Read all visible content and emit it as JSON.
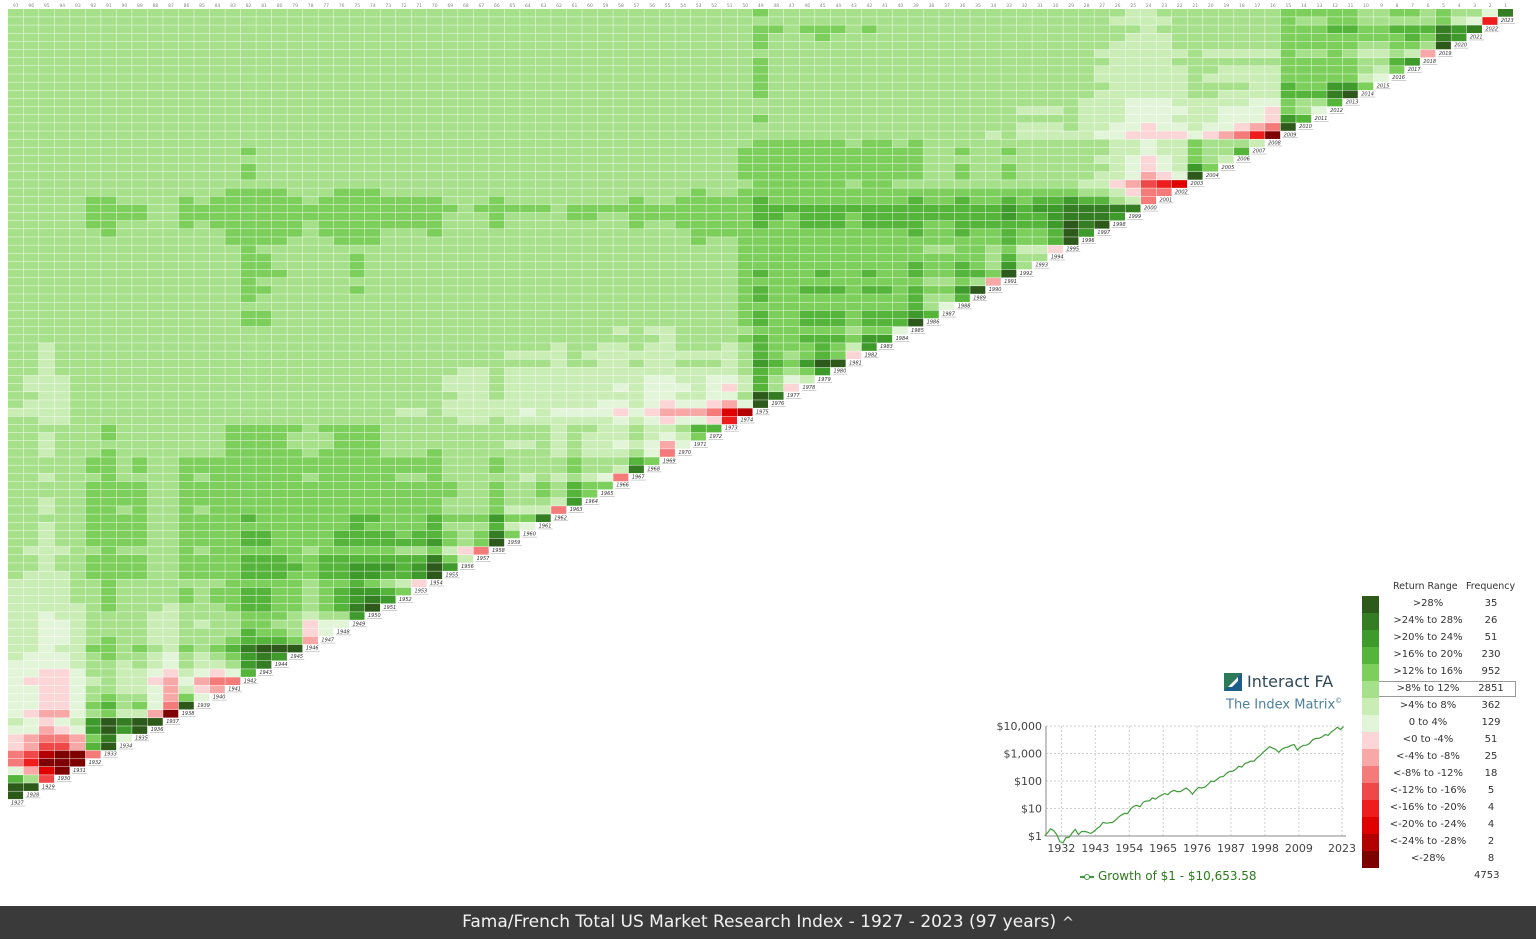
{
  "chart_data": {
    "type": "heatmap",
    "title": "",
    "x_labels": [
      "97",
      "96",
      "95",
      "94",
      "93",
      "92",
      "91",
      "90",
      "89",
      "88",
      "87",
      "86",
      "85",
      "84",
      "83",
      "82",
      "81",
      "80",
      "79",
      "78",
      "77",
      "76",
      "75",
      "74",
      "73",
      "72",
      "71",
      "70",
      "69",
      "68",
      "67",
      "66",
      "65",
      "64",
      "63",
      "62",
      "61",
      "60",
      "59",
      "58",
      "57",
      "56",
      "55",
      "54",
      "53",
      "52",
      "51",
      "50",
      "49",
      "48",
      "47",
      "46",
      "45",
      "44",
      "43",
      "42",
      "41",
      "40",
      "39",
      "38",
      "37",
      "36",
      "35",
      "34",
      "33",
      "32",
      "31",
      "30",
      "29",
      "28",
      "27",
      "26",
      "25",
      "24",
      "23",
      "22",
      "21",
      "20",
      "19",
      "18",
      "17",
      "16",
      "15",
      "14",
      "13",
      "12",
      "11",
      "10",
      "9",
      "8",
      "7",
      "6",
      "5",
      "4",
      "3",
      "2",
      "1"
    ],
    "y_labels": [
      "2023",
      "2022",
      "2021",
      "2020",
      "2019",
      "2018",
      "2017",
      "2016",
      "2015",
      "2014",
      "2013",
      "2012",
      "2011",
      "2010",
      "2009",
      "2008",
      "2007",
      "2006",
      "2005",
      "2004",
      "2003",
      "2002",
      "2001",
      "2000",
      "1999",
      "1998",
      "1997",
      "1996",
      "1995",
      "1994",
      "1993",
      "1992",
      "1991",
      "1990",
      "1989",
      "1988",
      "1987",
      "1986",
      "1985",
      "1984",
      "1983",
      "1982",
      "1981",
      "1980",
      "1979",
      "1978",
      "1977",
      "1976",
      "1975",
      "1974",
      "1973",
      "1972",
      "1971",
      "1970",
      "1969",
      "1968",
      "1967",
      "1966",
      "1965",
      "1964",
      "1963",
      "1962",
      "1961",
      "1960",
      "1959",
      "1958",
      "1957",
      "1956",
      "1955",
      "1954",
      "1953",
      "1952",
      "1951",
      "1950",
      "1949",
      "1948",
      "1947",
      "1946",
      "1945",
      "1944",
      "1943",
      "1942",
      "1941",
      "1940",
      "1939",
      "1938",
      "1937",
      "1936",
      "1935",
      "1934",
      "1933",
      "1932",
      "1931",
      "1930",
      "1929",
      "1928",
      "1927"
    ],
    "annual_returns_diagonal": {
      "1927": 30,
      "1928": 40,
      "1929": -14,
      "1930": -29,
      "1931": -44,
      "1932": -9,
      "1933": 55,
      "1934": 2,
      "1935": 46,
      "1936": 32,
      "1937": -35,
      "1938": 29,
      "1939": 2,
      "1940": -7,
      "1941": -10,
      "1942": 18,
      "1943": 28,
      "1944": 21,
      "1945": 38,
      "1946": -6,
      "1947": 3,
      "1948": 3,
      "1949": 20,
      "1950": 30,
      "1951": 21,
      "1952": 13,
      "1953": -1,
      "1954": 49,
      "1955": 24,
      "1956": 7,
      "1957": -11,
      "1958": 45,
      "1959": 12,
      "1960": 1,
      "1961": 27,
      "1962": -9,
      "1963": 21,
      "1964": 16,
      "1965": 14,
      "1966": -9,
      "1967": 27,
      "1968": 13,
      "1969": -10,
      "1970": 0,
      "1971": 16,
      "1972": 17,
      "1973": -19,
      "1974": -27,
      "1975": 38,
      "1976": 26,
      "1977": -3,
      "1978": 8,
      "1979": 24,
      "1980": 33,
      "1981": -4,
      "1982": 20,
      "1983": 23,
      "1984": 3,
      "1985": 32,
      "1986": 16,
      "1987": 2,
      "1988": 17,
      "1989": 29,
      "1990": -6,
      "1991": 35,
      "1992": 10,
      "1993": 11,
      "1994": -1,
      "1995": 36,
      "1996": 21,
      "1997": 31,
      "1998": 24,
      "1999": 26,
      "2000": -11,
      "2001": -11,
      "2002": -21,
      "2003": 31,
      "2004": 12,
      "2005": 6,
      "2006": 16,
      "2007": 6,
      "2008": -37,
      "2009": 28,
      "2010": 17,
      "2011": 1,
      "2012": 16,
      "2013": 35,
      "2014": 12,
      "2015": 0,
      "2016": 13,
      "2017": 21,
      "2018": -5,
      "2019": 31,
      "2020": 21,
      "2021": 26,
      "2022": -19,
      "2023": 26
    }
  },
  "legend": {
    "header_range": "Return Range",
    "header_freq": "Frequency",
    "rows": [
      {
        "label": ">28%",
        "freq": "35",
        "color": "#2d5a1b"
      },
      {
        "label": ">24% to 28%",
        "freq": "26",
        "color": "#357d22"
      },
      {
        "label": ">20% to 24%",
        "freq": "51",
        "color": "#3e9a2a"
      },
      {
        "label": ">16% to 20%",
        "freq": "230",
        "color": "#55b43a"
      },
      {
        "label": ">12% to 16%",
        "freq": "952",
        "color": "#7ccf5a"
      },
      {
        "label": ">8% to 12%",
        "freq": "2851",
        "color": "#a6e08a"
      },
      {
        "label": ">4% to 8%",
        "freq": "362",
        "color": "#c9edb5"
      },
      {
        "label": "0 to 4%",
        "freq": "129",
        "color": "#e3f5d9"
      },
      {
        "label": "<0 to -4%",
        "freq": "51",
        "color": "#fcd6d6"
      },
      {
        "label": "<-4% to -8%",
        "freq": "25",
        "color": "#f9a8a8"
      },
      {
        "label": "<-8% to -12%",
        "freq": "18",
        "color": "#f57a7a"
      },
      {
        "label": "<-12% to -16%",
        "freq": "5",
        "color": "#f04848"
      },
      {
        "label": "<-16% to -20%",
        "freq": "4",
        "color": "#ee1c1c"
      },
      {
        "label": "<-20% to -24%",
        "freq": "4",
        "color": "#e00000"
      },
      {
        "label": "<-24% to -28%",
        "freq": "2",
        "color": "#b30000"
      },
      {
        "label": "<-28%",
        "freq": "8",
        "color": "#7e0000"
      }
    ],
    "highlighted_index": 5,
    "total": "4753"
  },
  "brand": {
    "name": "Interact FA",
    "subtitle": "The Index Matrix",
    "mark": "©"
  },
  "growth_chart": {
    "y_ticks": [
      "$10,000",
      "$1,000",
      "$100",
      "$10",
      "$1"
    ],
    "x_ticks": [
      "1932",
      "1943",
      "1954",
      "1965",
      "1976",
      "1987",
      "1998",
      "2009",
      "2023"
    ],
    "legend_label": "Growth of $1 - $10,653.58",
    "line_color": "#3f9b3a"
  },
  "footer": {
    "title": "Fama/French Total US Market Research Index - 1927 - 2023 (97 years)",
    "chevron": "^"
  }
}
